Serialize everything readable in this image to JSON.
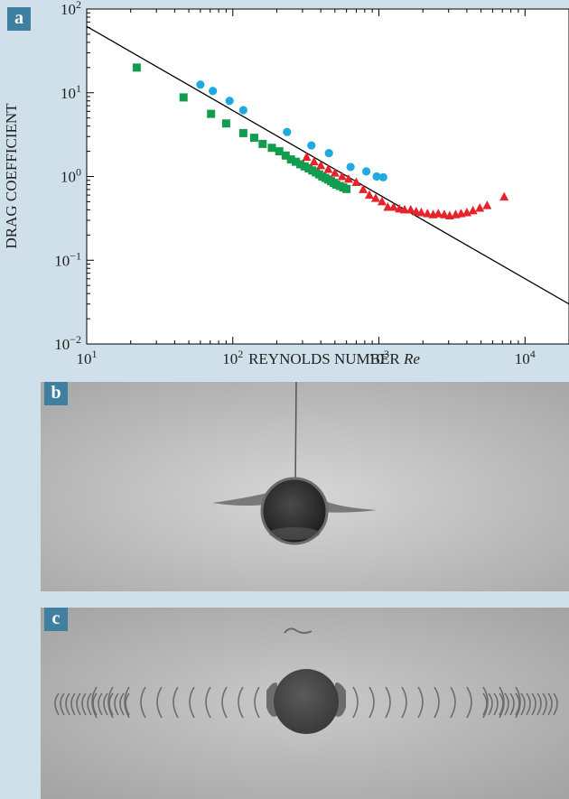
{
  "panels": {
    "a": "a",
    "b": "b",
    "c": "c"
  },
  "colors": {
    "background": "#cfe0ea",
    "label_box": "#3f7fa0",
    "blue_series": "#1ea9e1",
    "green_series": "#129d4e",
    "red_series": "#e4232b",
    "reference_line": "#000000"
  },
  "chart_data": {
    "type": "scatter",
    "xscale": "log",
    "yscale": "log",
    "xlim": [
      10,
      20000
    ],
    "ylim": [
      0.01,
      100
    ],
    "xlabel": "REYNOLDS NUMBER Re",
    "xlabel_main": "REYNOLDS NUMBER ",
    "xlabel_italic": "Re",
    "ylabel": "DRAG COEFFICIENT",
    "x_ticks": [
      {
        "base": "10",
        "exp": "1",
        "value": 10
      },
      {
        "base": "10",
        "exp": "2",
        "value": 100
      },
      {
        "base": "10",
        "exp": "3",
        "value": 1000
      },
      {
        "base": "10",
        "exp": "4",
        "value": 10000
      }
    ],
    "y_ticks": [
      {
        "base": "10",
        "exp": "−2",
        "value": 0.01
      },
      {
        "base": "10",
        "exp": "−1",
        "value": 0.1
      },
      {
        "base": "10",
        "exp": "0",
        "value": 1
      },
      {
        "base": "10",
        "exp": "1",
        "value": 10
      },
      {
        "base": "10",
        "exp": "2",
        "value": 100
      }
    ],
    "grid": false,
    "reference_line": {
      "points": [
        [
          10,
          62
        ],
        [
          20000,
          0.03
        ]
      ]
    },
    "series": [
      {
        "marker": "circle",
        "color": "#1ea9e1",
        "x": [
          60,
          73,
          95,
          118,
          235,
          345,
          455,
          640,
          820,
          965,
          1070
        ],
        "y": [
          12.5,
          10.5,
          8.0,
          6.2,
          3.4,
          2.35,
          1.9,
          1.3,
          1.15,
          1.0,
          0.98
        ]
      },
      {
        "marker": "square",
        "color": "#129d4e",
        "x": [
          22,
          46,
          71,
          90,
          118,
          140,
          160,
          185,
          208,
          230,
          250,
          270,
          290,
          310,
          330,
          350,
          370,
          390,
          410,
          430,
          450,
          470,
          490,
          510,
          540,
          570,
          600
        ],
        "y": [
          20,
          8.8,
          5.6,
          4.3,
          3.3,
          2.9,
          2.45,
          2.2,
          2.0,
          1.78,
          1.6,
          1.5,
          1.4,
          1.32,
          1.25,
          1.18,
          1.12,
          1.06,
          1.0,
          0.96,
          0.92,
          0.88,
          0.84,
          0.8,
          0.77,
          0.74,
          0.71
        ]
      },
      {
        "marker": "triangle",
        "color": "#e4232b",
        "x": [
          320,
          360,
          400,
          450,
          500,
          560,
          620,
          700,
          780,
          860,
          950,
          1050,
          1150,
          1260,
          1380,
          1500,
          1650,
          1800,
          1950,
          2150,
          2350,
          2550,
          2800,
          3050,
          3350,
          3650,
          4000,
          4400,
          4900,
          5500,
          7200
        ],
        "y": [
          1.7,
          1.5,
          1.35,
          1.22,
          1.1,
          1.0,
          0.93,
          0.85,
          0.7,
          0.6,
          0.55,
          0.5,
          0.43,
          0.43,
          0.41,
          0.4,
          0.4,
          0.38,
          0.37,
          0.36,
          0.35,
          0.36,
          0.35,
          0.34,
          0.35,
          0.36,
          0.37,
          0.39,
          0.42,
          0.45,
          0.57
        ]
      }
    ]
  }
}
